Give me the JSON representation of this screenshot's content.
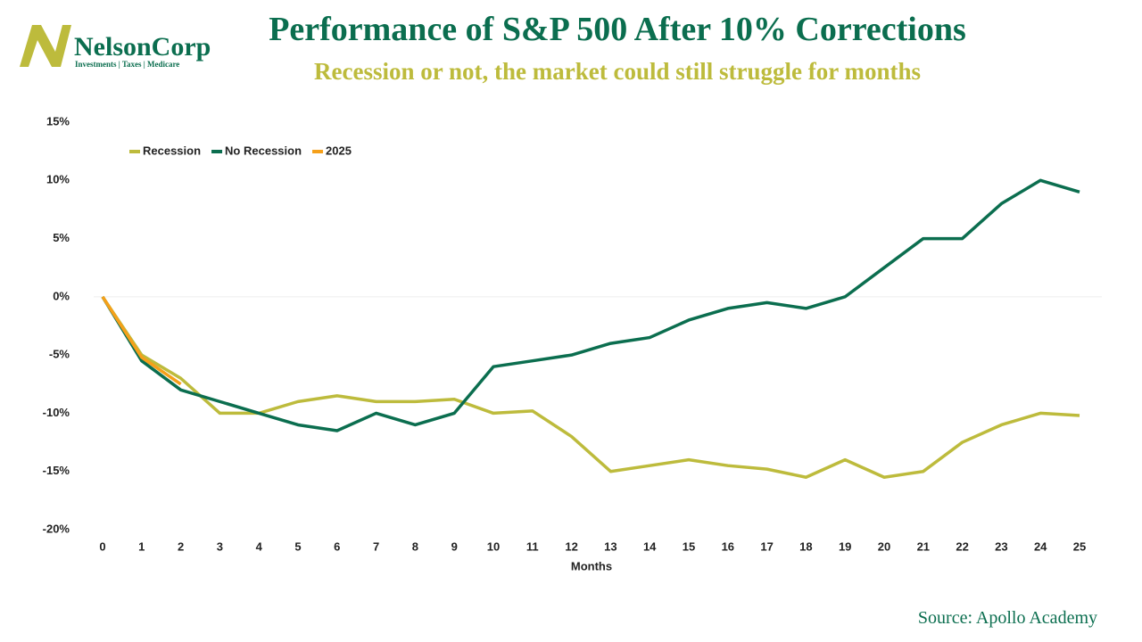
{
  "logo": {
    "name": "NelsonCorp",
    "tagline": "Investments | Taxes | Medicare"
  },
  "source": "Source: Apollo Academy",
  "chart_data": {
    "type": "line",
    "title": "Performance of S&P 500 After 10% Corrections",
    "subtitle": "Recession or not, the market could still struggle for months",
    "x_label": "Months",
    "x": [
      0,
      1,
      2,
      3,
      4,
      5,
      6,
      7,
      8,
      9,
      10,
      11,
      12,
      13,
      14,
      15,
      16,
      17,
      18,
      19,
      20,
      21,
      22,
      23,
      24,
      25
    ],
    "xlim": [
      0,
      25
    ],
    "series": [
      {
        "name": "Recession",
        "color": "#bdbb3c",
        "values": [
          0,
          -5,
          -7,
          -10,
          -10,
          -9,
          -8.5,
          -9,
          -9,
          -8.8,
          -10,
          -9.8,
          -12,
          -15,
          -14.5,
          -14,
          -14.5,
          -14.8,
          -15.5,
          -14,
          -15.5,
          -15,
          -12.5,
          -11,
          -10,
          -10.2
        ]
      },
      {
        "name": "No Recession",
        "color": "#0b6e4f",
        "values": [
          0,
          -5.5,
          -8,
          -9,
          -10,
          -11,
          -11.5,
          -10,
          -11,
          -10,
          -6,
          -5.5,
          -5,
          -4,
          -3.5,
          -2,
          -1,
          -0.5,
          -1,
          0,
          2.5,
          5,
          5,
          8,
          10,
          9
        ]
      },
      {
        "name": "2025",
        "color": "#f5a01a",
        "values": [
          0,
          -5.2,
          -7.5,
          null,
          null,
          null,
          null,
          null,
          null,
          null,
          null,
          null,
          null,
          null,
          null,
          null,
          null,
          null,
          null,
          null,
          null,
          null,
          null,
          null,
          null,
          null
        ]
      }
    ],
    "ylim": [
      -20,
      15
    ],
    "yticks": [
      {
        "value": -20,
        "label": "-20%"
      },
      {
        "value": -15,
        "label": "-15%"
      },
      {
        "value": -10,
        "label": "-10%"
      },
      {
        "value": -5,
        "label": "-5%"
      },
      {
        "value": 0,
        "label": "0%"
      },
      {
        "value": 5,
        "label": "5%"
      },
      {
        "value": 10,
        "label": "10%"
      },
      {
        "value": 15,
        "label": "15%"
      }
    ],
    "grid": false,
    "legend": "top-left"
  }
}
